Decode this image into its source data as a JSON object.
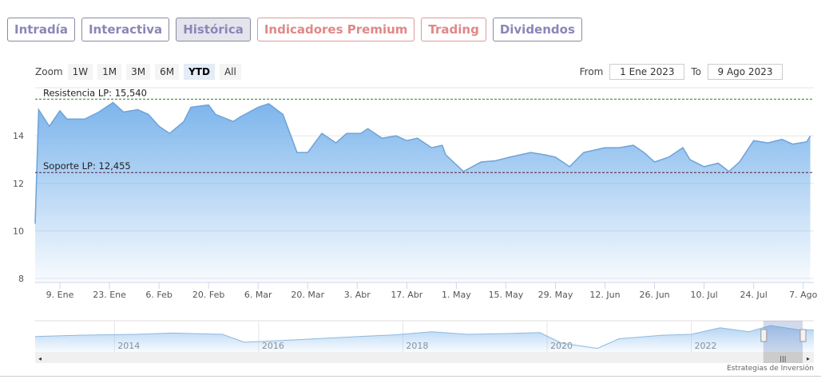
{
  "tabs": [
    "Intradía",
    "Interactiva",
    "Histórica",
    "Indicadores Premium",
    "Trading",
    "Dividendos"
  ],
  "zoom": {
    "label": "Zoom",
    "buttons": [
      "1W",
      "1M",
      "3M",
      "6M",
      "YTD",
      "All"
    ],
    "selected": "YTD"
  },
  "range": {
    "from_label": "From",
    "from": "1 Ene 2023",
    "to_label": "To",
    "to": "9 Ago 2023"
  },
  "credit": "Estrategias de Inversión",
  "colors": {
    "area": "#7cb5ec",
    "resistance": "#2a7a2a",
    "support": "#5a1a3a"
  },
  "chart_data": {
    "type": "area",
    "ylim": [
      8,
      15.8
    ],
    "yticks": [
      "8",
      "10",
      "12",
      "14"
    ],
    "xticks": [
      [
        "2023-01-09",
        "9. Ene"
      ],
      [
        "2023-01-23",
        "23. Ene"
      ],
      [
        "2023-02-06",
        "6. Feb"
      ],
      [
        "2023-02-20",
        "20. Feb"
      ],
      [
        "2023-03-06",
        "6. Mar"
      ],
      [
        "2023-03-20",
        "20. Mar"
      ],
      [
        "2023-04-03",
        "3. Abr"
      ],
      [
        "2023-04-17",
        "17. Abr"
      ],
      [
        "2023-05-01",
        "1. May"
      ],
      [
        "2023-05-15",
        "15. May"
      ],
      [
        "2023-05-29",
        "29. May"
      ],
      [
        "2023-06-12",
        "12. Jun"
      ],
      [
        "2023-06-26",
        "26. Jun"
      ],
      [
        "2023-07-10",
        "10. Jul"
      ],
      [
        "2023-07-24",
        "24. Jul"
      ],
      [
        "2023-08-07",
        "7. Ago"
      ]
    ],
    "xrange": [
      "2023-01-02",
      "2023-08-10"
    ],
    "lines": [
      {
        "label": "Resistencia LP: 15,540",
        "value": 15.54
      },
      {
        "label": "Soporte LP: 12,455",
        "value": 12.455
      }
    ],
    "series": [
      [
        "2023-01-02",
        10.3
      ],
      [
        "2023-01-03",
        15.1
      ],
      [
        "2023-01-06",
        14.4
      ],
      [
        "2023-01-09",
        15.05
      ],
      [
        "2023-01-11",
        14.7
      ],
      [
        "2023-01-16",
        14.7
      ],
      [
        "2023-01-20",
        15.0
      ],
      [
        "2023-01-24",
        15.4
      ],
      [
        "2023-01-27",
        15.0
      ],
      [
        "2023-01-31",
        15.1
      ],
      [
        "2023-02-03",
        14.9
      ],
      [
        "2023-02-06",
        14.4
      ],
      [
        "2023-02-09",
        14.1
      ],
      [
        "2023-02-13",
        14.6
      ],
      [
        "2023-02-15",
        15.2
      ],
      [
        "2023-02-20",
        15.3
      ],
      [
        "2023-02-22",
        14.9
      ],
      [
        "2023-02-27",
        14.6
      ],
      [
        "2023-03-01",
        14.8
      ],
      [
        "2023-03-06",
        15.2
      ],
      [
        "2023-03-09",
        15.35
      ],
      [
        "2023-03-13",
        14.9
      ],
      [
        "2023-03-15",
        14.1
      ],
      [
        "2023-03-17",
        13.3
      ],
      [
        "2023-03-20",
        13.3
      ],
      [
        "2023-03-24",
        14.1
      ],
      [
        "2023-03-28",
        13.7
      ],
      [
        "2023-03-31",
        14.1
      ],
      [
        "2023-04-04",
        14.1
      ],
      [
        "2023-04-06",
        14.3
      ],
      [
        "2023-04-10",
        13.9
      ],
      [
        "2023-04-14",
        14.0
      ],
      [
        "2023-04-17",
        13.8
      ],
      [
        "2023-04-20",
        13.9
      ],
      [
        "2023-04-24",
        13.5
      ],
      [
        "2023-04-27",
        13.6
      ],
      [
        "2023-04-28",
        13.2
      ],
      [
        "2023-05-03",
        12.5
      ],
      [
        "2023-05-08",
        12.9
      ],
      [
        "2023-05-12",
        12.95
      ],
      [
        "2023-05-16",
        13.1
      ],
      [
        "2023-05-22",
        13.3
      ],
      [
        "2023-05-26",
        13.2
      ],
      [
        "2023-05-29",
        13.1
      ],
      [
        "2023-06-02",
        12.7
      ],
      [
        "2023-06-06",
        13.3
      ],
      [
        "2023-06-12",
        13.5
      ],
      [
        "2023-06-16",
        13.5
      ],
      [
        "2023-06-20",
        13.6
      ],
      [
        "2023-06-23",
        13.3
      ],
      [
        "2023-06-26",
        12.9
      ],
      [
        "2023-06-30",
        13.1
      ],
      [
        "2023-07-04",
        13.5
      ],
      [
        "2023-07-06",
        13.0
      ],
      [
        "2023-07-10",
        12.7
      ],
      [
        "2023-07-14",
        12.85
      ],
      [
        "2023-07-17",
        12.5
      ],
      [
        "2023-07-20",
        12.9
      ],
      [
        "2023-07-24",
        13.8
      ],
      [
        "2023-07-28",
        13.7
      ],
      [
        "2023-08-01",
        13.85
      ],
      [
        "2023-08-04",
        13.65
      ],
      [
        "2023-08-08",
        13.75
      ],
      [
        "2023-08-09",
        14.0
      ]
    ],
    "navigator": {
      "years": [
        "2014",
        "2016",
        "2018",
        "2020",
        "2022"
      ],
      "start": 2012.9,
      "end": 2023.7,
      "values": [
        [
          2012.9,
          12.5
        ],
        [
          2013.5,
          12.8
        ],
        [
          2014.3,
          13.0
        ],
        [
          2014.8,
          13.3
        ],
        [
          2015.5,
          13.0
        ],
        [
          2015.8,
          11.2
        ],
        [
          2016.2,
          11.5
        ],
        [
          2016.8,
          12.0
        ],
        [
          2017.5,
          12.6
        ],
        [
          2017.9,
          12.9
        ],
        [
          2018.4,
          13.6
        ],
        [
          2018.9,
          13.0
        ],
        [
          2019.5,
          13.2
        ],
        [
          2019.9,
          13.4
        ],
        [
          2020.2,
          11.0
        ],
        [
          2020.7,
          9.8
        ],
        [
          2021.0,
          12.0
        ],
        [
          2021.6,
          12.8
        ],
        [
          2022.0,
          13.0
        ],
        [
          2022.4,
          14.5
        ],
        [
          2022.8,
          13.6
        ],
        [
          2023.1,
          15.0
        ],
        [
          2023.5,
          14.0
        ],
        [
          2023.7,
          14.0
        ]
      ]
    }
  }
}
